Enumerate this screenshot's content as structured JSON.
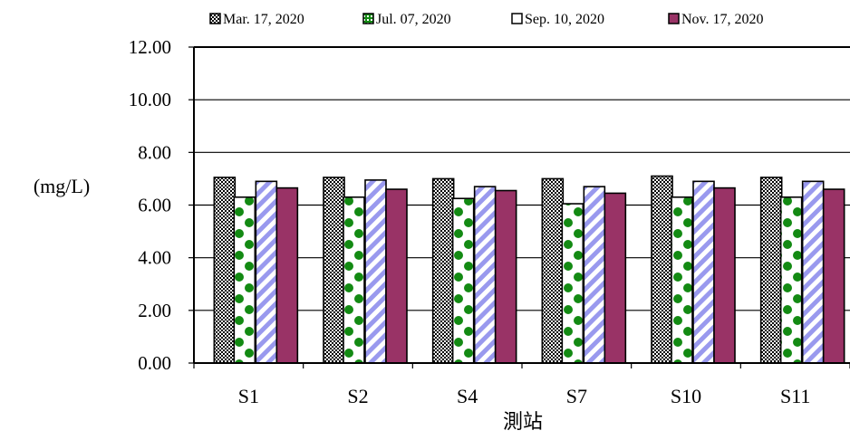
{
  "chart_data": {
    "type": "bar",
    "categories": [
      "S1",
      "S2",
      "S4",
      "S7",
      "S10",
      "S11"
    ],
    "series": [
      {
        "name": "Mar. 17, 2020",
        "values": [
          7.05,
          7.05,
          7.0,
          7.0,
          7.1,
          7.05
        ]
      },
      {
        "name": "Jul. 07, 2020",
        "values": [
          6.3,
          6.3,
          6.25,
          6.05,
          6.3,
          6.3
        ]
      },
      {
        "name": "Sep. 10, 2020",
        "values": [
          6.9,
          6.95,
          6.7,
          6.7,
          6.9,
          6.9
        ]
      },
      {
        "name": "Nov. 17, 2020",
        "values": [
          6.65,
          6.6,
          6.55,
          6.45,
          6.65,
          6.6
        ]
      }
    ],
    "title": "",
    "xlabel": "測站",
    "ylabel": "(mg/L)",
    "ylim": [
      0,
      12
    ],
    "yticks": [
      "0.00",
      "2.00",
      "4.00",
      "6.00",
      "8.00",
      "10.00",
      "12.00"
    ],
    "grid": true,
    "legend_position": "top",
    "colors": {
      "mar": "#000000",
      "jul": "#138a13",
      "sep": "#9999ee",
      "nov": "#993366"
    }
  }
}
